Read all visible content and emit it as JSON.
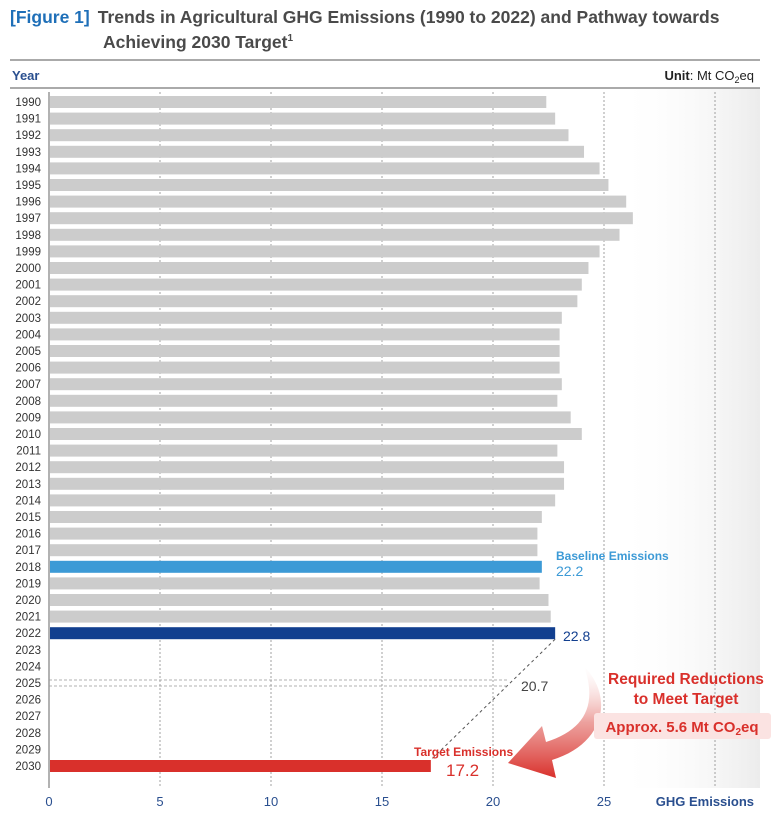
{
  "title": {
    "figure_tag": "[Figure 1]",
    "line1": "Trends in Agricultural GHG Emissions (1990 to 2022) and Pathway towards",
    "line2": "Achieving 2030 Target",
    "footnote_mark": "1"
  },
  "unit": {
    "label": "Unit",
    "value": "Mt CO",
    "sub": "2",
    "suffix": "eq"
  },
  "colors": {
    "bar": "#cccccc",
    "baseline": "#3c9ad6",
    "latest": "#123f8f",
    "target": "#d9302b",
    "axis_text": "#2a4f8f",
    "label_text": "#333333",
    "arrow": "#d9302b"
  },
  "annotations": {
    "baseline_label": "Baseline Emissions",
    "baseline_value": "22.2",
    "latest_value": "22.8",
    "midpoint_value": "20.7",
    "target_label": "Target Emissions",
    "target_value": "17.2",
    "reduction_line1": "Required Reductions",
    "reduction_line2": "to Meet Target",
    "reduction_amount_prefix": "Approx. 5.6 Mt CO",
    "reduction_amount_sub": "2",
    "reduction_amount_suffix": "eq"
  },
  "chart_data": {
    "type": "bar",
    "orientation": "horizontal",
    "ylabel": "Year",
    "xlabel": "GHG Emissions",
    "xlim": [
      0,
      30
    ],
    "xticks": [
      0,
      5,
      10,
      15,
      20,
      25
    ],
    "grid": true,
    "categories": [
      "1990",
      "1991",
      "1992",
      "1993",
      "1994",
      "1995",
      "1996",
      "1997",
      "1998",
      "1999",
      "2000",
      "2001",
      "2002",
      "2003",
      "2004",
      "2005",
      "2006",
      "2007",
      "2008",
      "2009",
      "2010",
      "2011",
      "2012",
      "2013",
      "2014",
      "2015",
      "2016",
      "2017",
      "2018",
      "2019",
      "2020",
      "2021",
      "2022",
      "2023",
      "2024",
      "2025",
      "2026",
      "2027",
      "2028",
      "2029",
      "2030"
    ],
    "values": [
      22.4,
      22.8,
      23.4,
      24.1,
      24.8,
      25.2,
      26.0,
      26.3,
      25.7,
      24.8,
      24.3,
      24.0,
      23.8,
      23.1,
      23.0,
      23.0,
      23.0,
      23.1,
      22.9,
      23.5,
      24.0,
      22.9,
      23.2,
      23.2,
      22.8,
      22.2,
      22.0,
      22.0,
      22.2,
      22.1,
      22.5,
      22.6,
      22.8,
      null,
      null,
      null,
      null,
      null,
      null,
      null,
      17.2
    ],
    "highlight": {
      "2018": "baseline",
      "2022": "latest",
      "2030": "target"
    },
    "pathway": {
      "from": [
        "2022",
        22.8
      ],
      "mid": [
        "2025",
        20.7
      ],
      "to": [
        "2030",
        17.2
      ]
    }
  }
}
